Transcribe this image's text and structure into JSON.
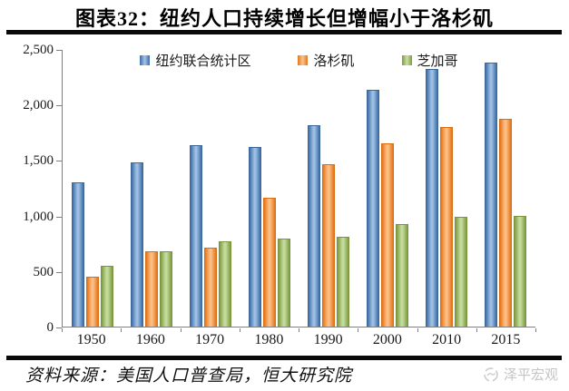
{
  "page": {
    "title": "图表32：纽约人口持续增长但增幅小于洛杉矶",
    "footer": {
      "source": "资料来源：美国人口普查局，恒大研究院",
      "watermark": "泽平宏观"
    }
  },
  "chart_data": {
    "type": "bar",
    "title": "图表32：纽约人口持续增长但增幅小于洛杉矶",
    "categories": [
      "1950",
      "1960",
      "1970",
      "1980",
      "1990",
      "2000",
      "2010",
      "2015"
    ],
    "series": [
      {
        "name": "纽约联合统计区",
        "color": "#4F81BD",
        "values": [
          1300,
          1480,
          1630,
          1620,
          1810,
          2130,
          2320,
          2380
        ]
      },
      {
        "name": "洛杉矶",
        "color": "#F79646",
        "values": [
          450,
          680,
          710,
          1160,
          1460,
          1650,
          1800,
          1870
        ]
      },
      {
        "name": "芝加哥",
        "color": "#9BBB59",
        "values": [
          550,
          680,
          770,
          790,
          810,
          920,
          985,
          1000
        ]
      }
    ],
    "xlabel": "",
    "ylabel": "",
    "ylim": [
      0,
      2500
    ],
    "yticks": [
      0,
      500,
      1000,
      1500,
      2000,
      2500
    ],
    "ytick_labels": [
      "0",
      "500",
      "1,000",
      "1,500",
      "2,000",
      "2,500"
    ],
    "grid": false,
    "legend_position": "top-inside",
    "plot_background": "#ffffff"
  }
}
